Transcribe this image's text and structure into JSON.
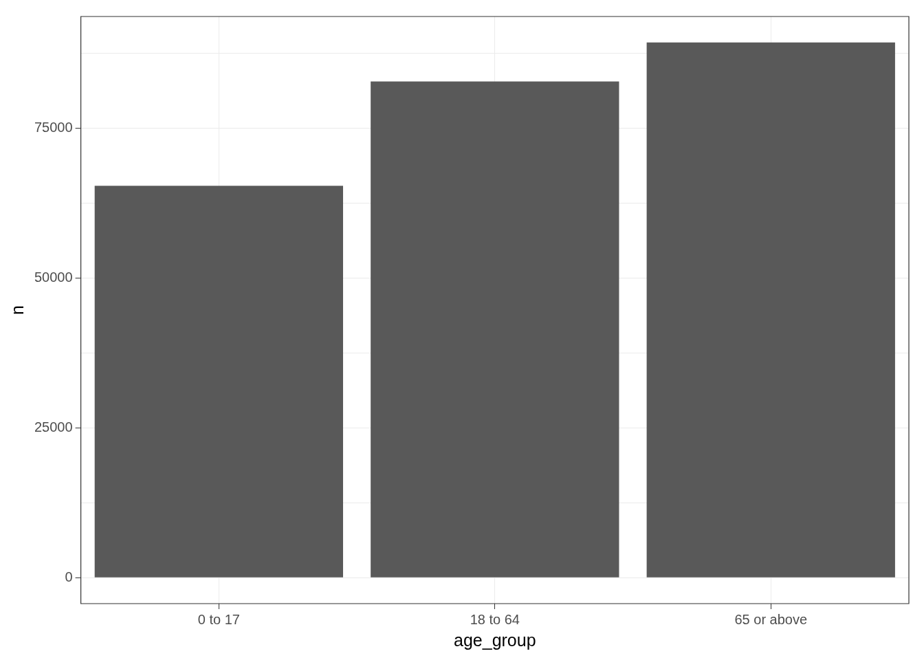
{
  "chart_data": {
    "type": "bar",
    "xlabel": "age_group",
    "ylabel": "n",
    "categories": [
      "0 to 17",
      "18 to 64",
      "65 or above"
    ],
    "values": [
      65400,
      82800,
      89300
    ],
    "color": "#595959",
    "ylim": [
      -4340,
      93640
    ],
    "yticks": [
      0,
      {
        "value": 12500,
        "label": null
      },
      25000,
      {
        "value": 37500,
        "label": null
      },
      50000,
      {
        "value": 62500,
        "label": null
      },
      75000,
      {
        "value": 87500,
        "label": null
      }
    ],
    "grid": true,
    "legend": false
  }
}
